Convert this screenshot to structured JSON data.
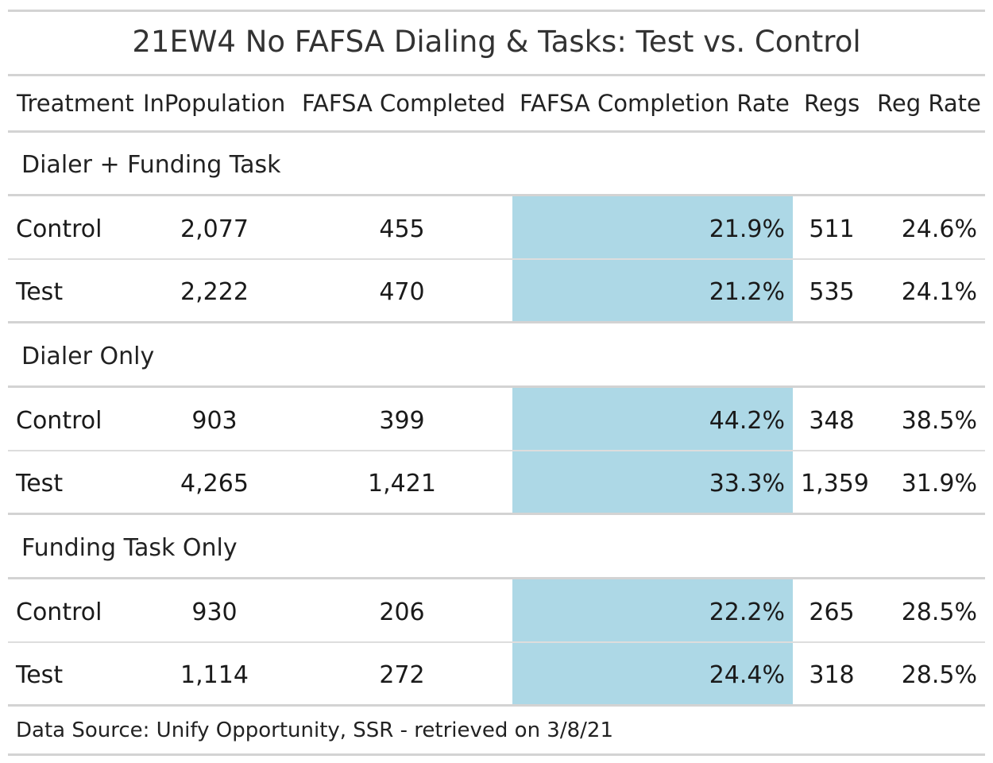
{
  "title": "21EW4 No FAFSA Dialing & Tasks: Test vs. Control",
  "columns": [
    "Treatment",
    "InPopulation",
    "FAFSA Completed",
    "FAFSA Completion Rate",
    "Regs",
    "Reg Rate"
  ],
  "highlight_color": "#add8e6",
  "groups": [
    {
      "label": "Dialer + Funding Task",
      "rows": [
        {
          "treatment": "Control",
          "in_population": "2,077",
          "fafsa_completed": "455",
          "fafsa_completion_rate": "21.9%",
          "regs": "511",
          "reg_rate": "24.6%"
        },
        {
          "treatment": "Test",
          "in_population": "2,222",
          "fafsa_completed": "470",
          "fafsa_completion_rate": "21.2%",
          "regs": "535",
          "reg_rate": "24.1%"
        }
      ]
    },
    {
      "label": "Dialer Only",
      "rows": [
        {
          "treatment": "Control",
          "in_population": "903",
          "fafsa_completed": "399",
          "fafsa_completion_rate": "44.2%",
          "regs": "348",
          "reg_rate": "38.5%"
        },
        {
          "treatment": "Test",
          "in_population": "4,265",
          "fafsa_completed": "1,421",
          "fafsa_completion_rate": "33.3%",
          "regs": "1,359",
          "reg_rate": "31.9%"
        }
      ]
    },
    {
      "label": "Funding Task Only",
      "rows": [
        {
          "treatment": "Control",
          "in_population": "930",
          "fafsa_completed": "206",
          "fafsa_completion_rate": "22.2%",
          "regs": "265",
          "reg_rate": "28.5%"
        },
        {
          "treatment": "Test",
          "in_population": "1,114",
          "fafsa_completed": "272",
          "fafsa_completion_rate": "24.4%",
          "regs": "318",
          "reg_rate": "28.5%"
        }
      ]
    }
  ],
  "footer": "Data Source: Unify Opportunity, SSR - retrieved on 3/8/21"
}
